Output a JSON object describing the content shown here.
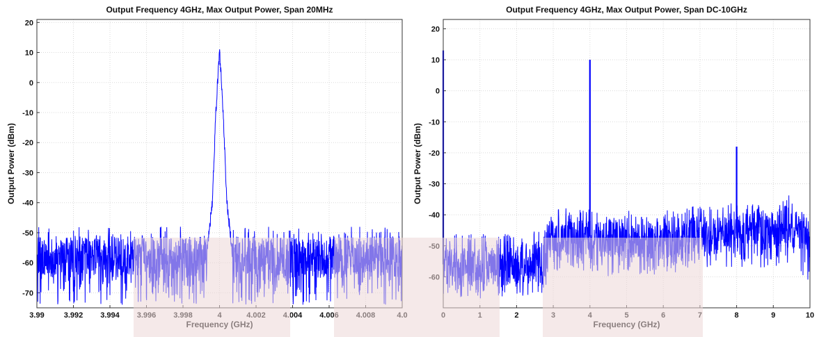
{
  "chart_data": [
    {
      "type": "line",
      "title": "Output Frequency 4GHz, Max Output Power, Span 20MHz",
      "xlabel": "Frequency (GHz)",
      "ylabel": "Output Power (dBm)",
      "xlim": [
        3.99,
        4.01
      ],
      "ylim": [
        -75,
        21
      ],
      "xticks": [
        "3.99",
        "3.992",
        "3.994",
        "3.996",
        "3.998",
        "4",
        "4.002",
        "4.004",
        "4.006",
        "4.008",
        "4.0"
      ],
      "yticks": [
        "20",
        "10",
        "0",
        "-10",
        "-20",
        "-30",
        "-40",
        "-50",
        "-60",
        "-70"
      ],
      "grid": true,
      "colors": {
        "trace": "#0000ff",
        "shade": "#ecd7d7"
      },
      "series": [
        {
          "x": [
            3.99,
            3.995,
            3.998,
            3.9993,
            3.9996,
            3.9998,
            4.0,
            4.0002,
            4.0004,
            4.0007,
            4.002,
            4.005,
            4.01
          ],
          "values": [
            -58,
            -58,
            -58,
            -57,
            -40,
            -10,
            11,
            -10,
            -40,
            -57,
            -58,
            -58,
            -58
          ],
          "noise_band": {
            "min": -74,
            "max": -48
          }
        }
      ]
    },
    {
      "type": "line",
      "title": "Output Frequency 4GHz, Max Output Power, Span DC-10GHz",
      "xlabel": "Frequency (GHz)",
      "ylabel": "Output Power (dBm)",
      "xlim": [
        0,
        10
      ],
      "ylim": [
        -70,
        23
      ],
      "xticks": [
        "0",
        "1",
        "2",
        "3",
        "4",
        "5",
        "6",
        "7",
        "8",
        "9",
        "10"
      ],
      "yticks": [
        "20",
        "10",
        "0",
        "-10",
        "-20",
        "-30",
        "-40",
        "-50",
        "-60"
      ],
      "grid": true,
      "colors": {
        "trace": "#0000ff",
        "shade": "#ecd7d7"
      },
      "series": [
        {
          "x": [
            0,
            0.05,
            1,
            2,
            2.8,
            2.85,
            3.5,
            4,
            4.5,
            5,
            5.5,
            6,
            6.5,
            7,
            7.5,
            8,
            8.5,
            9,
            9.5,
            10
          ],
          "values": [
            -56,
            -57,
            -57,
            -57,
            -55,
            -48,
            -47,
            -47,
            -48,
            -47,
            -48,
            -48,
            -47,
            -46,
            -46,
            -46,
            -45,
            -45,
            -44,
            -46
          ],
          "upper": [
            -45,
            -46,
            -46,
            -46,
            -44,
            -38,
            -37,
            -38,
            -40,
            -38,
            -40,
            -39,
            -37,
            -37,
            -37,
            -36,
            -36,
            -37,
            -33,
            -43
          ],
          "lower": [
            -66,
            -67,
            -67,
            -67,
            -65,
            -58,
            -58,
            -58,
            -60,
            -58,
            -60,
            -60,
            -58,
            -57,
            -57,
            -57,
            -57,
            -57,
            -56,
            -62
          ],
          "spurs": [
            {
              "x": 0.0,
              "value": 13
            },
            {
              "x": 4.0,
              "value": 10
            },
            {
              "x": 8.0,
              "value": -18
            }
          ]
        }
      ]
    }
  ]
}
